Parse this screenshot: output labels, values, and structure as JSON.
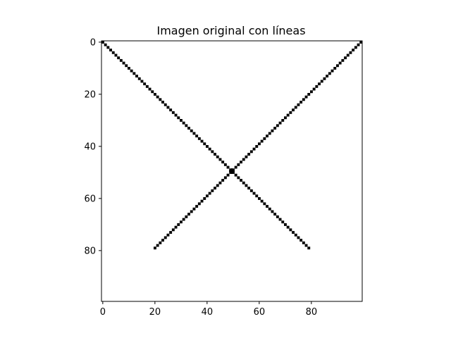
{
  "chart_data": {
    "type": "heatmap",
    "title": "Imagen original con líneas",
    "xlabel": "",
    "ylabel": "",
    "image_size": [
      100,
      100
    ],
    "xlim": [
      -0.5,
      99.5
    ],
    "ylim": [
      99.5,
      -0.5
    ],
    "x_ticks": [
      0,
      20,
      40,
      60,
      80
    ],
    "y_ticks": [
      0,
      20,
      40,
      60,
      80
    ],
    "background_value": 0,
    "line_value": 1,
    "colors": {
      "background": "#ffffff",
      "line": "#000000"
    },
    "series": [
      {
        "from": [
          0,
          0
        ],
        "to": [
          79,
          79
        ]
      },
      {
        "from": [
          99,
          0
        ],
        "to": [
          20,
          79
        ]
      }
    ],
    "grid": false
  }
}
